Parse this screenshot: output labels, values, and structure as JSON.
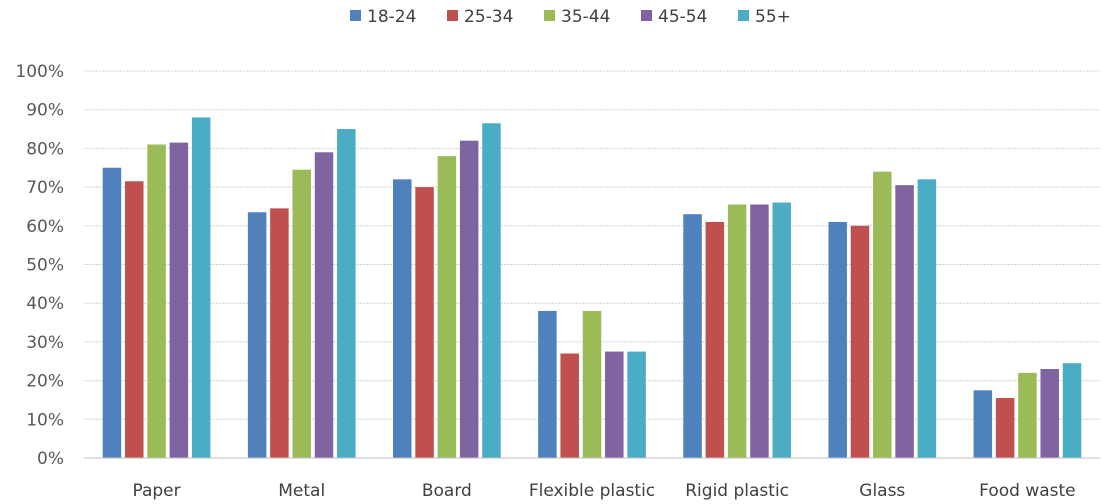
{
  "chart_data": {
    "type": "bar",
    "categories": [
      "Paper",
      "Metal",
      "Board",
      "Flexible plastic",
      "Rigid plastic",
      "Glass",
      "Food waste"
    ],
    "series": [
      {
        "name": "18-24",
        "color": "#4F81BD",
        "values": [
          75,
          63.5,
          72,
          38,
          63,
          61,
          17.5
        ]
      },
      {
        "name": "25-34",
        "color": "#C0504D",
        "values": [
          71.5,
          64.5,
          70,
          27,
          61,
          60,
          15.5
        ]
      },
      {
        "name": "35-44",
        "color": "#9BBB59",
        "values": [
          81,
          74.5,
          78,
          38,
          65.5,
          74,
          22
        ]
      },
      {
        "name": "45-54",
        "color": "#8064A2",
        "values": [
          81.5,
          79,
          82,
          27.5,
          65.5,
          70.5,
          23
        ]
      },
      {
        "name": "55+",
        "color": "#4BACC6",
        "values": [
          88,
          85,
          86.5,
          27.5,
          66,
          72,
          24.5
        ]
      }
    ],
    "y_ticks": [
      "0%",
      "10%",
      "20%",
      "30%",
      "40%",
      "50%",
      "60%",
      "70%",
      "80%",
      "90%",
      "100%"
    ],
    "ylim": [
      0,
      100
    ],
    "grid": true,
    "legend_position": "top-center"
  }
}
